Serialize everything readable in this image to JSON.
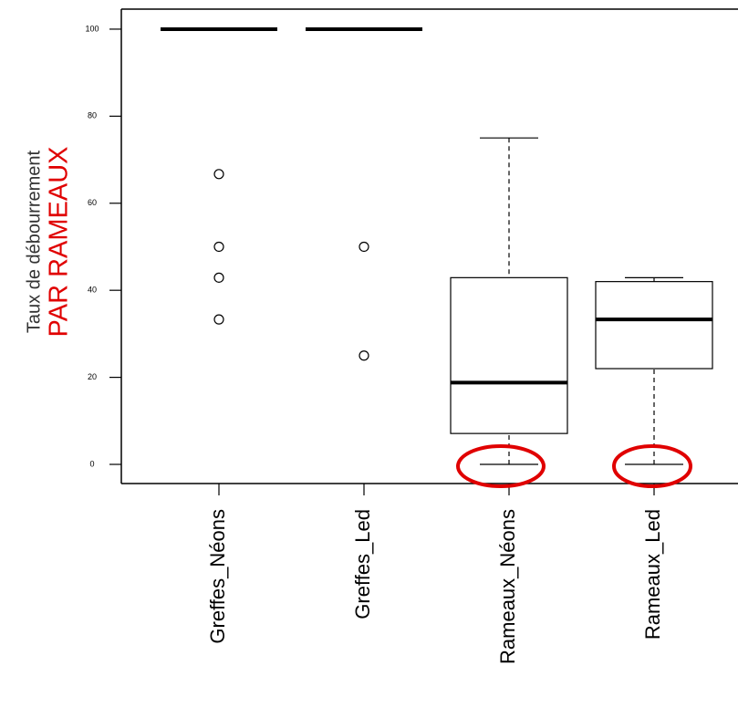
{
  "chart_data": {
    "type": "boxplot",
    "y_label": "Taux de débourrement",
    "annotation": "PAR RAMEAUX",
    "categories": [
      "Greffes_Néons",
      "Greffes_Led",
      "Rameaux_Néons",
      "Rameaux_Led"
    ],
    "boxes": [
      {
        "min": 100,
        "q1": 100,
        "median": 100,
        "q3": 100,
        "max": 100,
        "outliers": [
          66.7,
          50,
          42.9,
          33.3
        ]
      },
      {
        "min": 100,
        "q1": 100,
        "median": 100,
        "q3": 100,
        "max": 100,
        "outliers": [
          50,
          25
        ]
      },
      {
        "min": 0,
        "q1": 7.1,
        "median": 18.8,
        "q3": 42.9,
        "max": 75,
        "outliers": []
      },
      {
        "min": 0,
        "q1": 22,
        "median": 33.3,
        "q3": 42,
        "max": 42.9,
        "outliers": []
      }
    ],
    "ylim": [
      -4.4,
      104.6
    ],
    "yticks": [
      0,
      20,
      40,
      60,
      80,
      100
    ]
  }
}
